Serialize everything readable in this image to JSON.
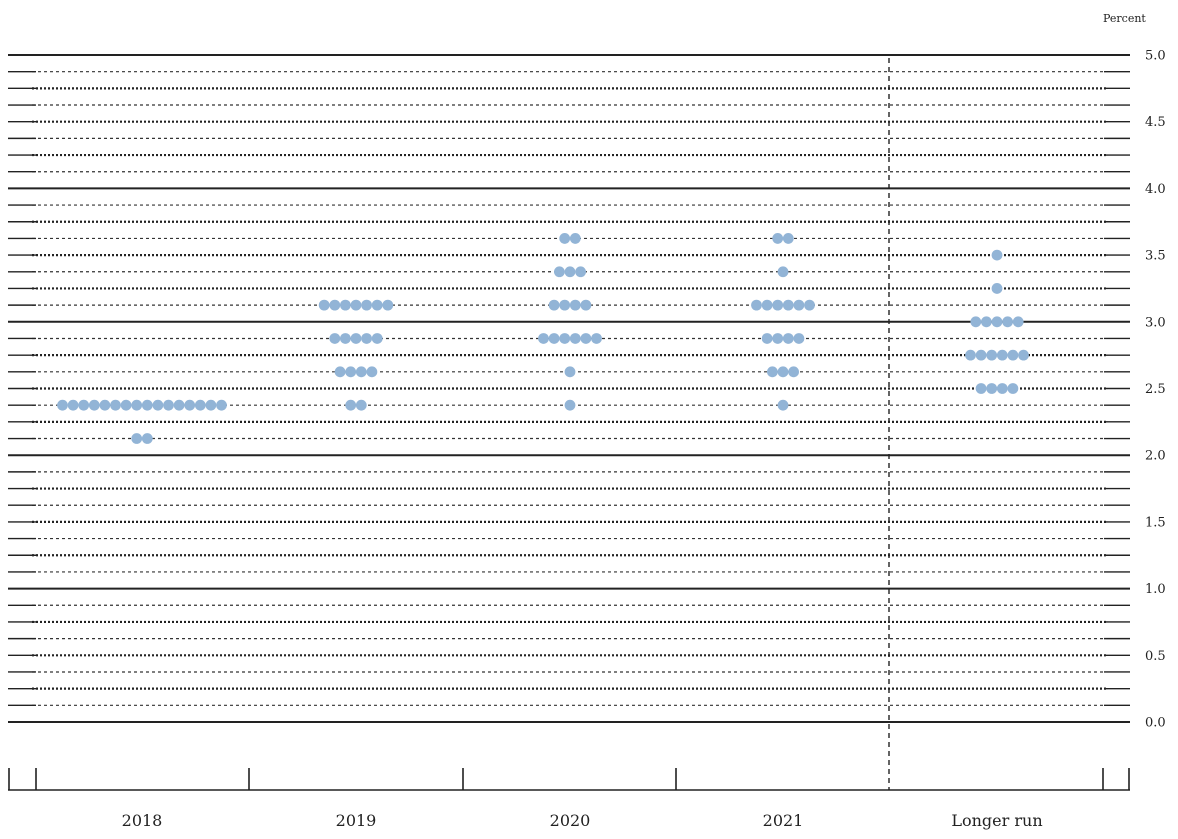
{
  "chart_data": {
    "type": "scatter",
    "ylabel": "Percent",
    "ylim": [
      0,
      5
    ],
    "y_ticks": [
      "0.0",
      "0.5",
      "1.0",
      "1.5",
      "2.0",
      "2.5",
      "3.0",
      "3.5",
      "4.0",
      "4.5",
      "5.0"
    ],
    "categories": [
      "2018",
      "2019",
      "2020",
      "2021",
      "Longer run"
    ],
    "grid": true,
    "dot_color": "#92b4d6",
    "dots": [
      {
        "category": "2018",
        "y": 2.375,
        "count": 16
      },
      {
        "category": "2018",
        "y": 2.125,
        "count": 2
      },
      {
        "category": "2019",
        "y": 3.125,
        "count": 7
      },
      {
        "category": "2019",
        "y": 2.875,
        "count": 5
      },
      {
        "category": "2019",
        "y": 2.625,
        "count": 4
      },
      {
        "category": "2019",
        "y": 2.375,
        "count": 2
      },
      {
        "category": "2020",
        "y": 3.625,
        "count": 2
      },
      {
        "category": "2020",
        "y": 3.375,
        "count": 3
      },
      {
        "category": "2020",
        "y": 3.125,
        "count": 4
      },
      {
        "category": "2020",
        "y": 2.875,
        "count": 6
      },
      {
        "category": "2020",
        "y": 2.625,
        "count": 1
      },
      {
        "category": "2020",
        "y": 2.375,
        "count": 1
      },
      {
        "category": "2021",
        "y": 3.625,
        "count": 2
      },
      {
        "category": "2021",
        "y": 3.375,
        "count": 1
      },
      {
        "category": "2021",
        "y": 3.125,
        "count": 6
      },
      {
        "category": "2021",
        "y": 2.875,
        "count": 4
      },
      {
        "category": "2021",
        "y": 2.625,
        "count": 3
      },
      {
        "category": "2021",
        "y": 2.375,
        "count": 1
      },
      {
        "category": "Longer run",
        "y": 3.5,
        "count": 1
      },
      {
        "category": "Longer run",
        "y": 3.25,
        "count": 1
      },
      {
        "category": "Longer run",
        "y": 3.0,
        "count": 5
      },
      {
        "category": "Longer run",
        "y": 2.75,
        "count": 6
      },
      {
        "category": "Longer run",
        "y": 2.5,
        "count": 4
      }
    ]
  }
}
